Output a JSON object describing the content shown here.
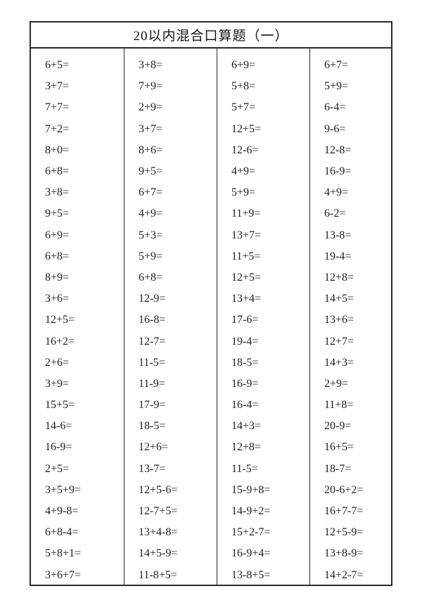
{
  "page": {
    "title": "20以内混合口算题（一）"
  },
  "worksheet": {
    "columns": [
      {
        "problems": [
          "6+5=",
          "3+7=",
          "7+7=",
          "7+2=",
          "8+0=",
          "6+8=",
          "3+8=",
          "9+5=",
          "6+9=",
          "6+8=",
          "8+9=",
          "3+6=",
          "12+5=",
          "16+2=",
          "2+6=",
          "3+9=",
          "15+5=",
          "14-6=",
          "16-9=",
          "2+5=",
          "3+5+9=",
          "4+9-8=",
          "6+8-4=",
          "5+8+1=",
          "3+6+7="
        ]
      },
      {
        "problems": [
          "3+8=",
          "7+9=",
          "2+9=",
          "3+7=",
          "8+6=",
          "9+5=",
          "6+7=",
          "4+9=",
          "5+3=",
          "5+9=",
          "6+8=",
          "12-9=",
          "16-8=",
          "12-7=",
          "11-5=",
          "11-9=",
          "17-9=",
          "18-5=",
          "12+6=",
          "13-7=",
          "12+5-6=",
          "12-7+5=",
          "13+4-8=",
          "14+5-9=",
          "11-8+5="
        ]
      },
      {
        "problems": [
          "6+9=",
          "5+8=",
          "5+7=",
          "12+5=",
          "12-6=",
          "4+9=",
          "5+9=",
          "11+9=",
          "13+7=",
          "11+5=",
          "12+5=",
          "13+4=",
          "17-6=",
          "19-4=",
          "18-5=",
          "16-9=",
          "16-4=",
          "14+3=",
          "12+8=",
          "11-5=",
          "15-9+8=",
          "14-9+2=",
          "15+2-7=",
          "16-9+4=",
          "13-8+5="
        ]
      },
      {
        "problems": [
          "6+7=",
          "5+9=",
          "6-4=",
          "9-6=",
          "12-8=",
          "16-9=",
          "4+9=",
          "6-2=",
          "13-8=",
          "19-4=",
          "12+8=",
          "14+5=",
          "13+6=",
          "12+7=",
          "14+3=",
          "2+9=",
          "11+8=",
          "20-9=",
          "16+5=",
          "18-7=",
          "20-6+2=",
          "16+7-7=",
          "12+5-9=",
          "13+8-9=",
          "14+2-7="
        ]
      }
    ]
  }
}
